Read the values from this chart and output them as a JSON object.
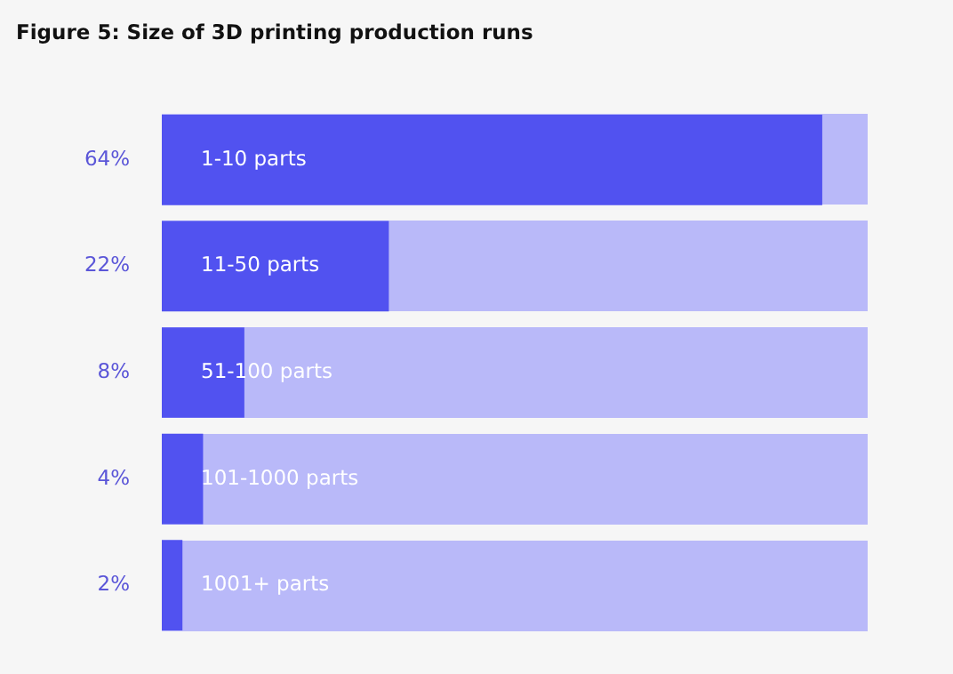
{
  "chart_data": {
    "type": "bar",
    "orientation": "horizontal",
    "title": "Figure 5: Size of 3D printing production runs",
    "categories": [
      "1-10 parts",
      "11-50 parts",
      "51-100 parts",
      "101-1000 parts",
      "1001+ parts"
    ],
    "values": [
      64,
      22,
      8,
      4,
      2
    ],
    "value_labels": [
      "64%",
      "22%",
      "8%",
      "4%",
      "2%"
    ],
    "color": "#5152f0",
    "xlim": [
      0,
      68.4
    ]
  }
}
